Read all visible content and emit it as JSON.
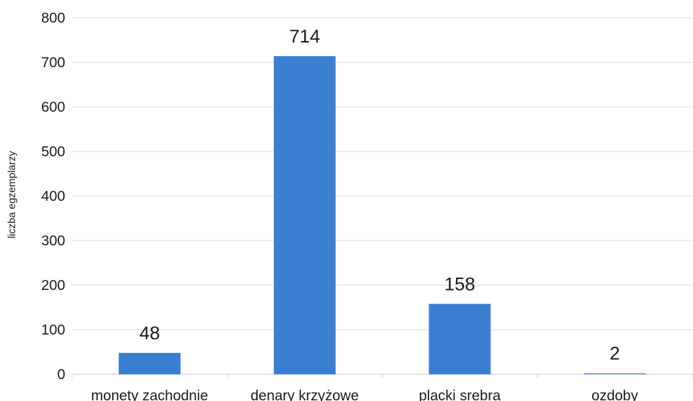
{
  "chart_data": {
    "type": "bar",
    "title": "",
    "xlabel": "",
    "ylabel": "liczba egzemplarzy",
    "categories": [
      "monety zachodnie",
      "denary krzyżowe",
      "placki srebra",
      "ozdoby"
    ],
    "values": [
      48,
      714,
      158,
      2
    ],
    "data_labels": [
      "48",
      "714",
      "158",
      "2"
    ],
    "ylim": [
      0,
      800
    ],
    "yticks": [
      0,
      100,
      200,
      300,
      400,
      500,
      600,
      700,
      800
    ],
    "ytick_labels": [
      "0",
      "100",
      "200",
      "300",
      "400",
      "500",
      "600",
      "700",
      "800"
    ],
    "bar_color": "#3a7fd0",
    "grid": true,
    "legend": "none"
  }
}
